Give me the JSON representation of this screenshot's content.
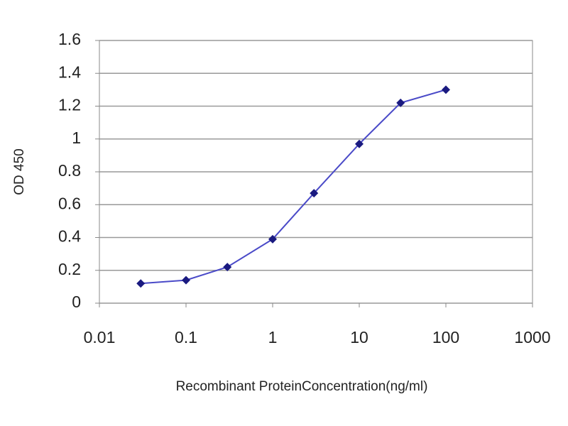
{
  "chart_data": {
    "type": "line",
    "x_label": "Recombinant ProteinConcentration(ng/ml)",
    "y_label": "OD 450",
    "x": [
      0.03,
      0.1,
      0.3,
      1,
      3,
      10,
      30,
      100
    ],
    "values": [
      0.12,
      0.14,
      0.22,
      0.39,
      0.67,
      0.97,
      1.22,
      1.3
    ],
    "color": "#4a4ac8",
    "marker_color": "#1a1a80",
    "xscale": "log",
    "xlim": [
      0.01,
      1000
    ],
    "xticks": [
      0.01,
      0.1,
      1,
      10,
      100,
      1000
    ],
    "ylim": [
      0,
      1.6
    ],
    "yticks": [
      0,
      0.2,
      0.4,
      0.6,
      0.8,
      1,
      1.2,
      1.4,
      1.6
    ],
    "grid": true
  }
}
